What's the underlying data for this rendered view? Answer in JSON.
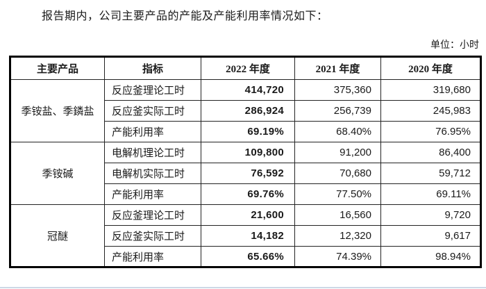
{
  "page": {
    "title": "报告期内，公司主要产品的产能及产能利用率情况如下：",
    "unit_label": "单位：小时"
  },
  "table": {
    "headers": [
      "主要产品",
      "指标",
      "2022 年度",
      "2021 年度",
      "2020 年度"
    ],
    "groups": [
      {
        "product": "季铵盐、季鏻盐",
        "rows": [
          {
            "indicator": "反应釜理论工时",
            "y2022": "414,720",
            "y2021": "375,360",
            "y2020": "319,680"
          },
          {
            "indicator": "反应釜实际工时",
            "y2022": "286,924",
            "y2021": "256,739",
            "y2020": "245,983"
          },
          {
            "indicator": "产能利用率",
            "y2022": "69.19%",
            "y2021": "68.40%",
            "y2020": "76.95%"
          }
        ]
      },
      {
        "product": "季铵碱",
        "rows": [
          {
            "indicator": "电解机理论工时",
            "y2022": "109,800",
            "y2021": "91,200",
            "y2020": "86,400"
          },
          {
            "indicator": "电解机实际工时",
            "y2022": "76,592",
            "y2021": "70,680",
            "y2020": "59,712"
          },
          {
            "indicator": "产能利用率",
            "y2022": "69.76%",
            "y2021": "77.50%",
            "y2020": "69.11%"
          }
        ]
      },
      {
        "product": "冠醚",
        "rows": [
          {
            "indicator": "反应釜理论工时",
            "y2022": "21,600",
            "y2021": "16,560",
            "y2020": "9,720"
          },
          {
            "indicator": "反应釜实际工时",
            "y2022": "14,182",
            "y2021": "12,320",
            "y2020": "9,617"
          },
          {
            "indicator": "产能利用率",
            "y2022": "65.66%",
            "y2021": "74.39%",
            "y2020": "98.94%"
          }
        ]
      }
    ],
    "colors": {
      "border": "#000000",
      "text": "#1a1a1a",
      "bottom_accent": "#ccd8e6"
    }
  }
}
